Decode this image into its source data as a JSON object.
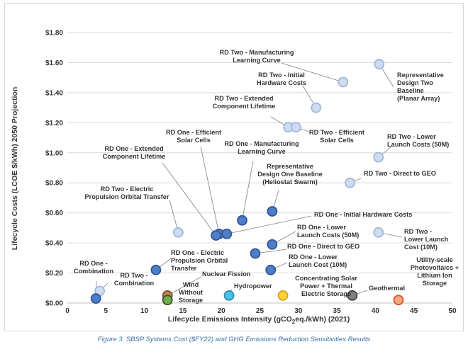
{
  "caption": "Figure 3. SBSP Systems Cost ($FY22) and GHG Emissions Reduction Sensitivities Results",
  "chart_data": {
    "type": "scatter",
    "xlabel_prefix": "Lifecycle Emissions Intensity (gCO",
    "xlabel_sub": "2",
    "xlabel_suffix": "eq./kWh) (2021)",
    "ylabel": "Lifecycle Costs (LCOE $/kWh) 2050 Projection",
    "xlim": [
      0,
      50
    ],
    "ylim": [
      0,
      1.8
    ],
    "x_ticks": [
      0,
      5,
      10,
      15,
      20,
      25,
      30,
      35,
      40,
      45,
      50
    ],
    "y_ticks": [
      0,
      0.2,
      0.4,
      0.6,
      0.8,
      1.0,
      1.2,
      1.4,
      1.6,
      1.8
    ],
    "y_tick_labels": [
      "$0.00",
      "$0.20",
      "$0.40",
      "$0.60",
      "$0.80",
      "$1.00",
      "$1.20",
      "$1.40",
      "$1.60",
      "$1.80"
    ],
    "gridlines": "horizontal",
    "colors": {
      "rd_one_fill": "#4f7ec8",
      "rd_one_stroke": "#2f5597",
      "rd_two_fill": "#cfdcf0",
      "rd_two_stroke": "#9fb7dc",
      "nuclear_fill": "#c08060",
      "nuclear_stroke": "#8a4a2a",
      "wind_fill": "#70ad47",
      "wind_stroke": "#375623",
      "hydro_fill": "#4bc2e6",
      "hydro_stroke": "#2e8bb0",
      "csp_fill": "#ffd43b",
      "csp_stroke": "#d4a017",
      "geo_fill": "#7f7f7f",
      "geo_stroke": "#404040",
      "utility_fill": "#f4a582",
      "utility_stroke": "#d9531e",
      "grid": "#d9d9d9",
      "leader": "#7f7f7f"
    },
    "points": [
      {
        "id": "rd2-manufacturing",
        "x": 35.8,
        "y": 1.47,
        "cat": "rd_two",
        "label": [
          "RD Two - Manufacturing",
          "Learning Curve"
        ]
      },
      {
        "id": "rd2-baseline",
        "x": 40.5,
        "y": 1.59,
        "cat": "rd_two",
        "label": [
          "Representative",
          "Design Two",
          "Baseline",
          "(Planar Array)"
        ]
      },
      {
        "id": "rd2-initial-hw",
        "x": 32.3,
        "y": 1.3,
        "cat": "rd_two",
        "label": [
          "RD Two - Initial",
          "Hardware Costs"
        ]
      },
      {
        "id": "rd2-extended",
        "x": 28.7,
        "y": 1.17,
        "cat": "rd_two",
        "label": [
          "RD Two - Extended",
          "Component Lifetime"
        ]
      },
      {
        "id": "rd2-efficient",
        "x": 29.7,
        "y": 1.17,
        "cat": "rd_two",
        "label": [
          "RD Two - Efficient",
          "Solar Cells"
        ]
      },
      {
        "id": "rd2-lower-launch-50",
        "x": 40.4,
        "y": 0.97,
        "cat": "rd_two",
        "label": [
          "RD Two - Lower",
          "Launch Costs (50M)"
        ]
      },
      {
        "id": "rd2-direct-geo",
        "x": 36.7,
        "y": 0.8,
        "cat": "rd_two",
        "label": [
          "RD Two - Direct to GEO"
        ]
      },
      {
        "id": "rd2-electric",
        "x": 14.4,
        "y": 0.47,
        "cat": "rd_two",
        "label": [
          "RD Two - Electric",
          "Propulsion Orbital Transfer"
        ]
      },
      {
        "id": "rd2-lower-launch-10",
        "x": 40.4,
        "y": 0.47,
        "cat": "rd_two",
        "label": [
          "RD Two -",
          "Lower Launch",
          "Cost (10M)"
        ]
      },
      {
        "id": "rd2-combination",
        "x": 4.2,
        "y": 0.08,
        "cat": "rd_two",
        "label": [
          "RD Two -",
          "Combination"
        ]
      },
      {
        "id": "rd1-baseline",
        "x": 26.6,
        "y": 0.61,
        "cat": "rd_one",
        "label": [
          "Representative",
          "Design One Baseline",
          "(Heliostat Swarm)"
        ]
      },
      {
        "id": "rd1-manufacturing",
        "x": 22.7,
        "y": 0.55,
        "cat": "rd_one",
        "label": [
          "RD One - Manufacturing",
          "Learning Curve"
        ]
      },
      {
        "id": "rd1-efficient",
        "x": 19.7,
        "y": 0.46,
        "cat": "rd_one",
        "label": [
          "RD One - Efficient",
          "Solar Cells"
        ]
      },
      {
        "id": "rd1-extended",
        "x": 19.3,
        "y": 0.45,
        "cat": "rd_one",
        "label": [
          "RD One - Extended",
          "Component Lifetime"
        ]
      },
      {
        "id": "rd1-initial-hw",
        "x": 20.7,
        "y": 0.46,
        "cat": "rd_one",
        "label": [
          "RD One - Initial Hardware Costs"
        ]
      },
      {
        "id": "rd1-lower-launch-50",
        "x": 26.6,
        "y": 0.39,
        "cat": "rd_one",
        "label": [
          "RD One - Lower",
          "Launch Costs (50M)"
        ]
      },
      {
        "id": "rd1-direct-geo",
        "x": 24.4,
        "y": 0.33,
        "cat": "rd_one",
        "label": [
          "RD One - Direct to GEO"
        ]
      },
      {
        "id": "rd1-lower-launch-10",
        "x": 26.4,
        "y": 0.22,
        "cat": "rd_one",
        "label": [
          "RD One - Lower",
          "Launch Cost (10M)"
        ]
      },
      {
        "id": "rd1-electric",
        "x": 11.5,
        "y": 0.22,
        "cat": "rd_one",
        "label": [
          "RD One - Electric",
          "Propulsion Orbital",
          "Transfer"
        ]
      },
      {
        "id": "rd1-combination",
        "x": 3.7,
        "y": 0.03,
        "cat": "rd_one",
        "label": [
          "RD One -",
          "Combination"
        ]
      },
      {
        "id": "nuclear",
        "x": 13.0,
        "y": 0.05,
        "cat": "nuclear",
        "label": [
          "Nuclear Fission"
        ]
      },
      {
        "id": "wind",
        "x": 13.0,
        "y": 0.02,
        "cat": "wind",
        "label": [
          "Wind",
          "Without",
          "Storage"
        ]
      },
      {
        "id": "hydropower",
        "x": 21.0,
        "y": 0.05,
        "cat": "hydro",
        "label": [
          "Hydropower"
        ]
      },
      {
        "id": "csp",
        "x": 28.0,
        "y": 0.05,
        "cat": "csp",
        "label": [
          "Concentrating Solar",
          "Power + Thermal",
          "Electric Storage"
        ]
      },
      {
        "id": "geothermal",
        "x": 37.0,
        "y": 0.05,
        "cat": "geo",
        "label": [
          "Geothermal"
        ]
      },
      {
        "id": "utility-pv",
        "x": 43.0,
        "y": 0.02,
        "cat": "utility",
        "label": [
          "Utility-scale",
          "Photovoltaics +",
          "Lithium Ion",
          "Storage"
        ]
      }
    ]
  }
}
